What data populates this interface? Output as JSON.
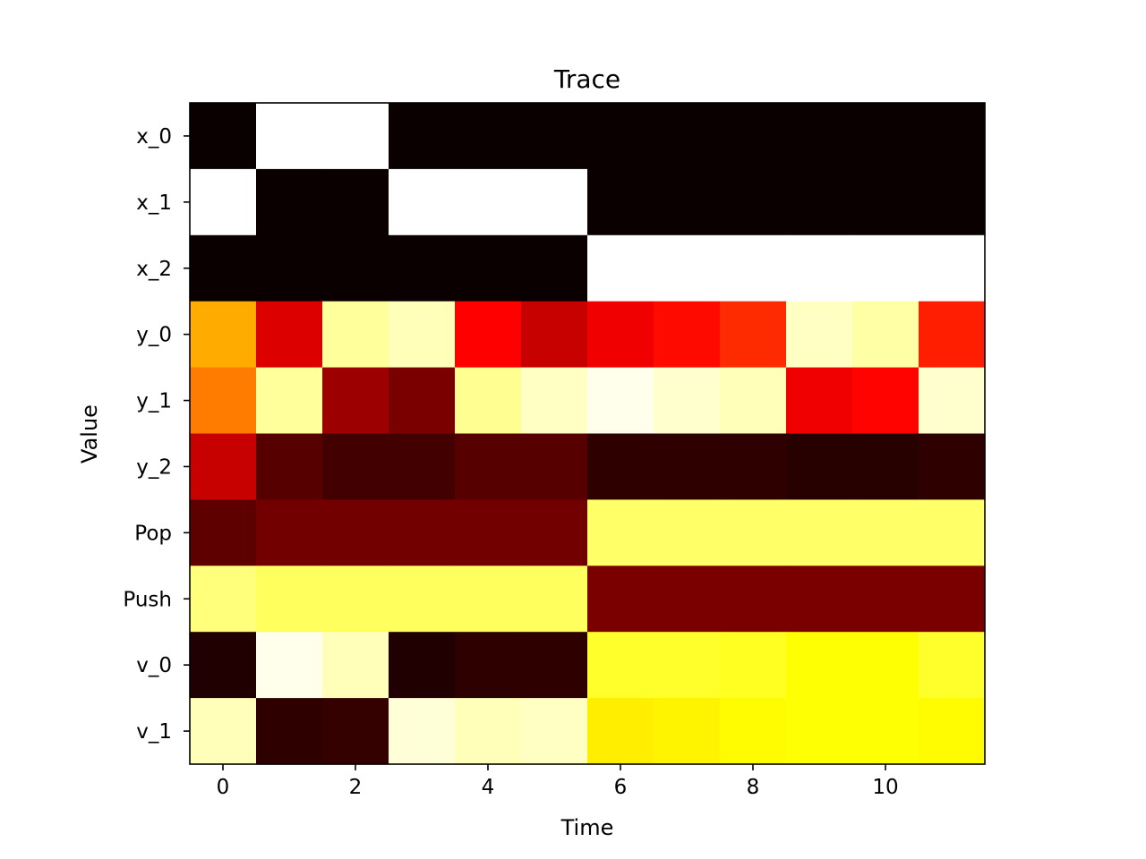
{
  "chart_data": {
    "type": "heatmap",
    "title": "Trace",
    "xlabel": "Time",
    "ylabel": "Value",
    "colormap": "hot",
    "x_ticks": [
      0,
      2,
      4,
      6,
      8,
      10
    ],
    "x_range": [
      -0.5,
      11.5
    ],
    "x_values": [
      0,
      1,
      2,
      3,
      4,
      5,
      6,
      7,
      8,
      9,
      10,
      11
    ],
    "rows": [
      "x_0",
      "x_1",
      "x_2",
      "y_0",
      "y_1",
      "y_2",
      "Pop",
      "Push",
      "v_0",
      "v_1"
    ],
    "value_range": [
      0,
      1
    ],
    "values": [
      [
        0.0,
        1.0,
        1.0,
        0.0,
        0.0,
        0.0,
        0.0,
        0.0,
        0.0,
        0.0,
        0.0,
        0.0
      ],
      [
        1.0,
        0.0,
        0.0,
        1.0,
        1.0,
        1.0,
        0.0,
        0.0,
        0.0,
        0.0,
        0.0,
        0.0
      ],
      [
        0.0,
        0.0,
        0.0,
        0.0,
        0.0,
        0.0,
        1.0,
        1.0,
        1.0,
        1.0,
        1.0,
        1.0
      ],
      [
        0.62,
        0.3,
        0.9,
        0.93,
        0.35,
        0.27,
        0.33,
        0.38,
        0.43,
        0.94,
        0.91,
        0.41
      ],
      [
        0.55,
        0.9,
        0.21,
        0.16,
        0.89,
        0.94,
        0.98,
        0.95,
        0.93,
        0.33,
        0.37,
        0.95
      ],
      [
        0.27,
        0.11,
        0.08,
        0.08,
        0.11,
        0.11,
        0.05,
        0.05,
        0.05,
        0.04,
        0.04,
        0.05
      ],
      [
        0.12,
        0.15,
        0.15,
        0.15,
        0.15,
        0.15,
        0.85,
        0.85,
        0.85,
        0.85,
        0.85,
        0.85
      ],
      [
        0.87,
        0.84,
        0.84,
        0.84,
        0.84,
        0.84,
        0.16,
        0.16,
        0.16,
        0.16,
        0.16,
        0.16
      ],
      [
        0.03,
        0.98,
        0.93,
        0.03,
        0.05,
        0.05,
        0.79,
        0.79,
        0.78,
        0.75,
        0.75,
        0.79
      ],
      [
        0.93,
        0.05,
        0.06,
        0.96,
        0.93,
        0.94,
        0.72,
        0.73,
        0.74,
        0.75,
        0.75,
        0.74
      ]
    ]
  }
}
